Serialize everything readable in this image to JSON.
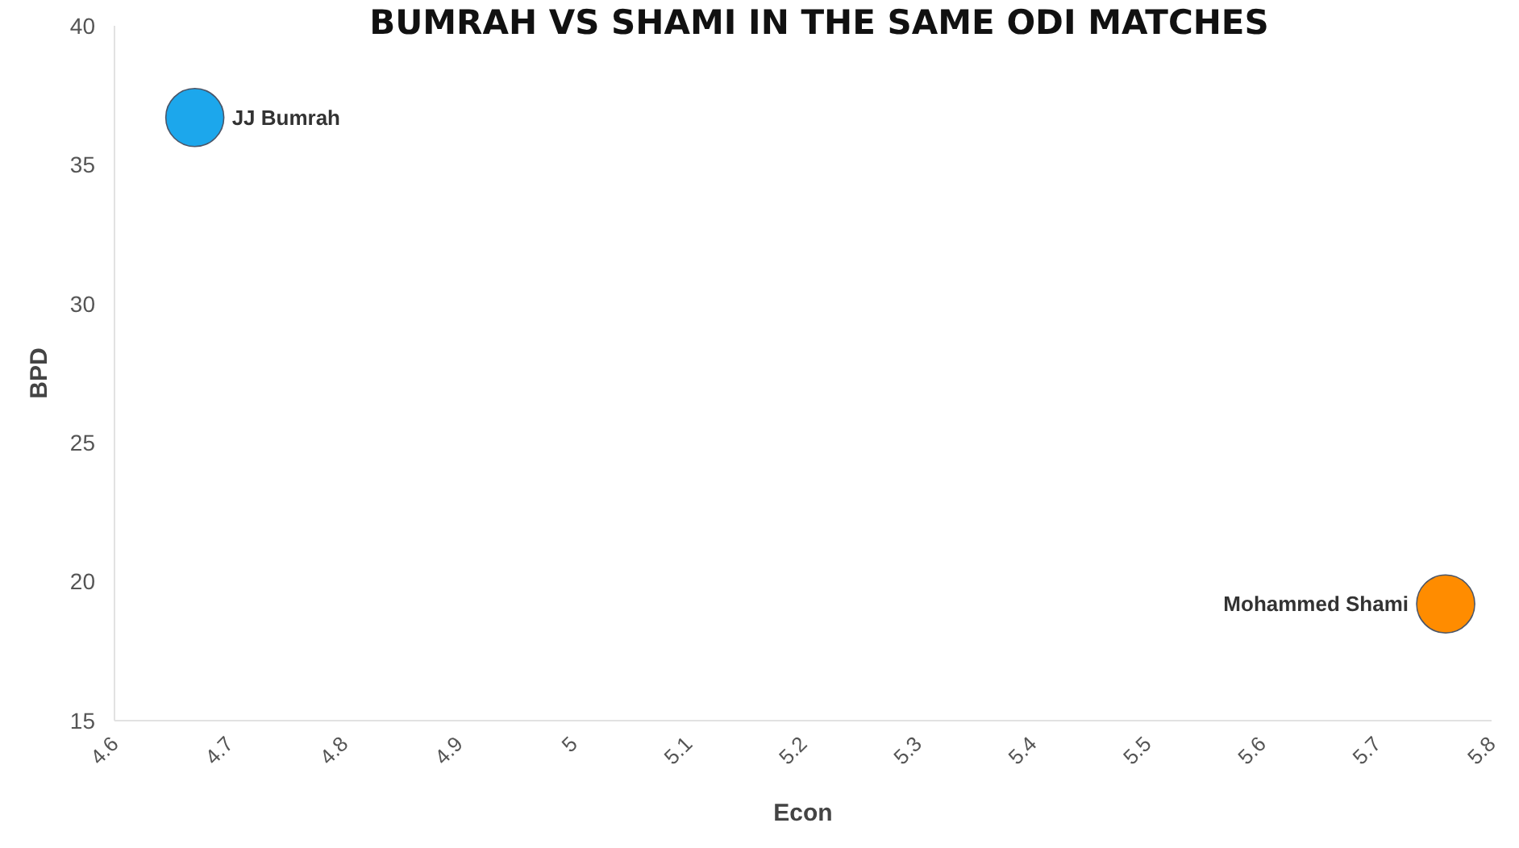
{
  "chart_data": {
    "type": "scatter",
    "title": "BUMRAH VS SHAMI IN THE SAME ODI MATCHES",
    "xlabel": "Econ",
    "ylabel": "BPD",
    "series": [
      {
        "name": "JJ Bumrah",
        "color": "#1ca7ec",
        "x": [
          4.67
        ],
        "values": [
          36.7
        ]
      },
      {
        "name": "Mohammed Shami",
        "color": "#ff8c00",
        "x": [
          5.76
        ],
        "values": [
          19.2
        ]
      }
    ],
    "xlim": [
      4.6,
      5.8
    ],
    "xticks": [
      4.6,
      4.7,
      4.8,
      4.9,
      5,
      5.1,
      5.2,
      5.3,
      5.4,
      5.5,
      5.6,
      5.7,
      5.8
    ],
    "ylim": [
      15,
      40
    ],
    "yticks": [
      15,
      20,
      25,
      30,
      35,
      40
    ],
    "grid": false,
    "marker": "circle"
  }
}
